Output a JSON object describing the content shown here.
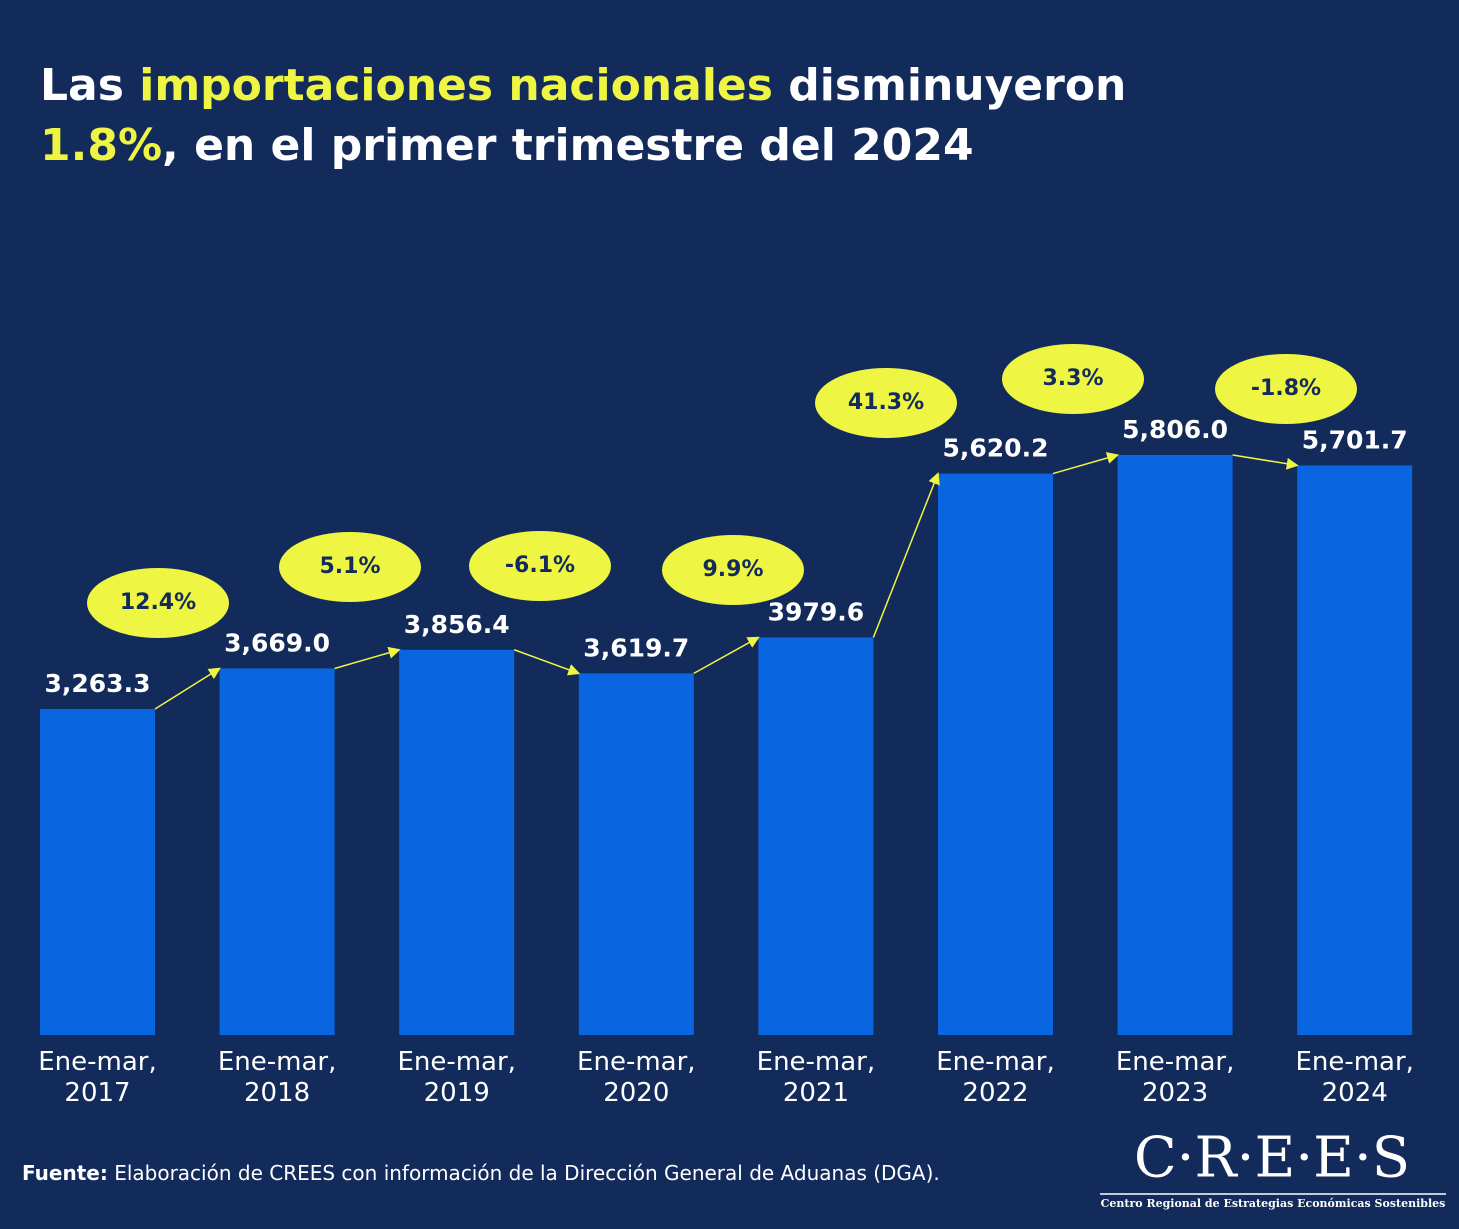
{
  "chart_data": {
    "type": "bar",
    "title_lines": [
      [
        {
          "text": "Las ",
          "highlight": false
        },
        {
          "text": "importaciones nacionales",
          "highlight": true
        },
        {
          "text": " disminuyeron",
          "highlight": false
        }
      ],
      [
        {
          "text": "1.8%",
          "highlight": true
        },
        {
          "text": ", en el primer trimestre del 2024",
          "highlight": false
        }
      ]
    ],
    "categories": [
      "Ene-mar, 2017",
      "Ene-mar, 2018",
      "Ene-mar, 2019",
      "Ene-mar, 2020",
      "Ene-mar, 2021",
      "Ene-mar, 2022",
      "Ene-mar, 2023",
      "Ene-mar, 2024"
    ],
    "values": [
      3263.3,
      3669.0,
      3856.4,
      3619.7,
      3979.6,
      5620.2,
      5806.0,
      5701.7
    ],
    "value_labels": [
      "3,263.3",
      "3,669.0",
      "3,856.4",
      "3,619.7",
      "3979.6",
      "5,620.2",
      "5,806.0",
      "5,701.7"
    ],
    "color": "#0a66e0",
    "growth_rates": [
      12.4,
      5.1,
      -6.1,
      9.9,
      41.3,
      3.3,
      -1.8
    ],
    "growth_labels": [
      "12.4%",
      "5.1%",
      "-6.1%",
      "9.9%",
      "41.3%",
      "3.3%",
      "-1.8%"
    ],
    "source_label": "Fuente:",
    "source_text": " Elaboración de CREES con información de la Dirección General de Aduanas (DGA).",
    "logo": "C·R·E·E·S",
    "logo_subtitle": "Centro Regional de Estrategias Económicas Sostenibles"
  }
}
